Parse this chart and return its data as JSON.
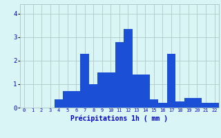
{
  "categories": [
    0,
    1,
    2,
    3,
    4,
    5,
    6,
    7,
    8,
    9,
    10,
    11,
    12,
    13,
    14,
    15,
    16,
    17,
    18,
    19,
    20,
    21,
    22
  ],
  "values": [
    0,
    0,
    0,
    0,
    0.35,
    0.7,
    0.7,
    2.3,
    1.0,
    1.5,
    1.5,
    2.8,
    3.35,
    1.4,
    1.4,
    0.35,
    0.2,
    2.3,
    0.25,
    0.4,
    0.4,
    0.2,
    0.2
  ],
  "bar_color": "#1a4fd6",
  "background_color": "#d9f5f5",
  "grid_color": "#b0c8c8",
  "text_color": "#0000cc",
  "xlabel": "Précipitations 1h ( mm )",
  "ylim": [
    0,
    4.4
  ],
  "yticks": [
    0,
    1,
    2,
    3,
    4
  ],
  "title": ""
}
